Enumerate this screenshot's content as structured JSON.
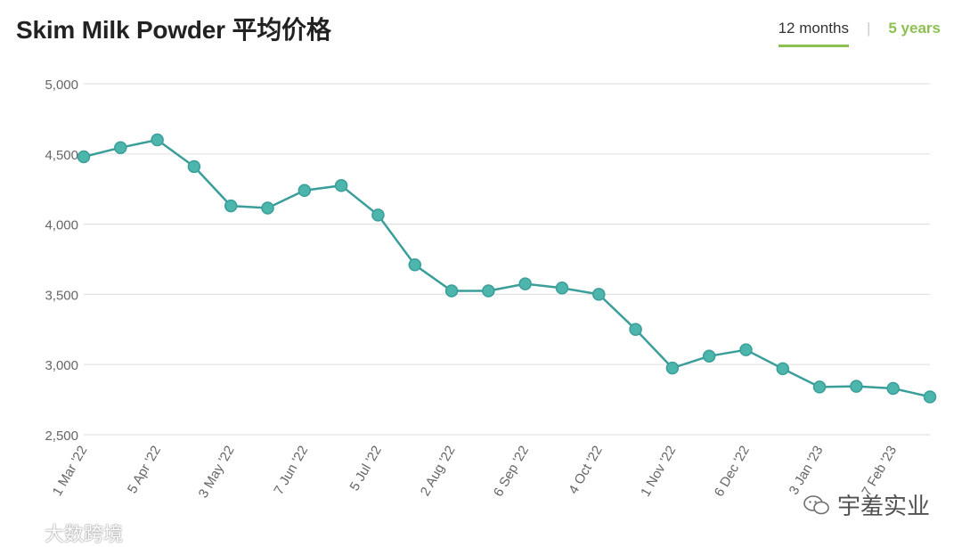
{
  "header": {
    "title": "Skim Milk Powder 平均价格",
    "tabs": [
      {
        "label": "12 months",
        "active": true
      },
      {
        "label": "5 years",
        "active": false
      }
    ]
  },
  "watermarks": {
    "right_text": "宇羞实业",
    "left_text": "大数跨境"
  },
  "colors": {
    "line": "#3a9e9a",
    "marker_fill": "#4db6ac",
    "grid": "#e2e2e2",
    "tab_accent": "#8cc152"
  },
  "chart_data": {
    "type": "line",
    "title": "Skim Milk Powder 平均价格",
    "xlabel": "",
    "ylabel": "",
    "ylim": [
      2500,
      5000
    ],
    "y_ticks": [
      "5,000",
      "4,500",
      "4,000",
      "3,500",
      "3,000",
      "2,500"
    ],
    "y_tick_values": [
      5000,
      4500,
      4000,
      3500,
      3000,
      2500
    ],
    "x_tick_labels": [
      "1 Mar '22",
      "5 Apr '22",
      "3 May '22",
      "7 Jun '22",
      "5 Jul '22",
      "2 Aug '22",
      "6 Sep '22",
      "4 Oct '22",
      "1 Nov '22",
      "6 Dec '22",
      "3 Jan '23",
      "7 Feb '23"
    ],
    "x_tick_point_index": [
      0,
      2,
      4,
      6,
      8,
      10,
      12,
      14,
      16,
      18,
      20,
      22
    ],
    "grid": true,
    "legend": "none",
    "series": [
      {
        "values": [
          4480,
          4545,
          4600,
          4410,
          4130,
          4115,
          4240,
          4275,
          4065,
          3710,
          3525,
          3525,
          3575,
          3545,
          3500,
          3250,
          2975,
          3060,
          3105,
          2970,
          2840,
          2845,
          2830,
          2770
        ]
      }
    ]
  }
}
